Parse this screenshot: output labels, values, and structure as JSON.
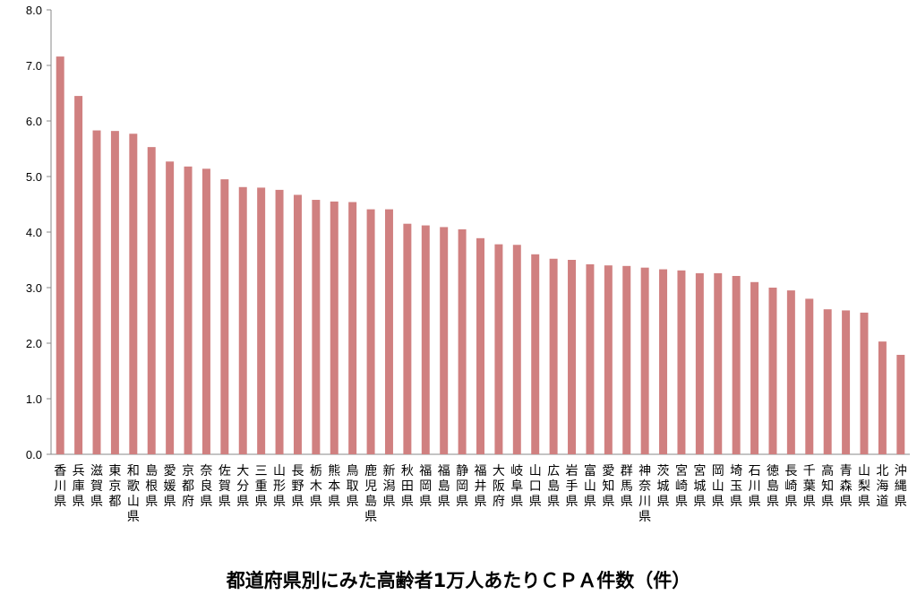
{
  "chart_data": {
    "type": "bar",
    "title": "都道府県別にみた高齢者1万人あたりＣＰＡ件数（件）",
    "xlabel": "",
    "ylabel": "",
    "ylim": [
      0,
      8
    ],
    "yticks": [
      "0.0",
      "1.0",
      "2.0",
      "3.0",
      "4.0",
      "5.0",
      "6.0",
      "7.0",
      "8.0"
    ],
    "bar_color": "#d08080",
    "grid": false,
    "categories": [
      "香川県",
      "兵庫県",
      "滋賀県",
      "東京都",
      "和歌山県",
      "島根県",
      "愛媛県",
      "京都府",
      "奈良県",
      "佐賀県",
      "大分県",
      "三重県",
      "山形県",
      "長野県",
      "栃木県",
      "熊本県",
      "鳥取県",
      "鹿児島県",
      "新潟県",
      "秋田県",
      "福岡県",
      "福島県",
      "静岡県",
      "福井県",
      "大阪府",
      "岐阜県",
      "山口県",
      "広島県",
      "岩手県",
      "富山県",
      "愛知県",
      "群馬県",
      "神奈川県",
      "茨城県",
      "宮崎県",
      "宮城県",
      "岡山県",
      "埼玉県",
      "石川県",
      "徳島県",
      "長崎県",
      "千葉県",
      "高知県",
      "青森県",
      "山梨県",
      "北海道",
      "沖縄県"
    ],
    "values": [
      7.16,
      6.45,
      5.83,
      5.82,
      5.77,
      5.53,
      5.27,
      5.18,
      5.14,
      4.95,
      4.81,
      4.8,
      4.76,
      4.67,
      4.58,
      4.55,
      4.54,
      4.41,
      4.41,
      4.15,
      4.12,
      4.09,
      4.05,
      3.89,
      3.78,
      3.77,
      3.6,
      3.52,
      3.5,
      3.42,
      3.4,
      3.39,
      3.36,
      3.33,
      3.31,
      3.26,
      3.26,
      3.21,
      3.1,
      3.0,
      2.95,
      2.8,
      2.61,
      2.59,
      2.55,
      2.03,
      1.79
    ]
  }
}
